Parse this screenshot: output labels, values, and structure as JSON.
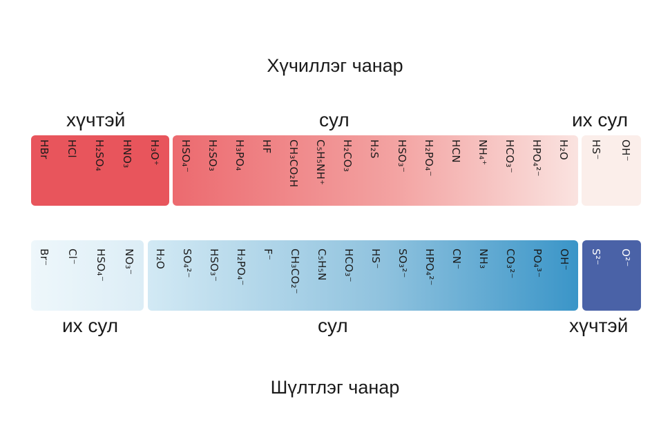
{
  "acidity_title": "Хүчиллэг чанар",
  "basicity_title": "Шүлтлэг чанар",
  "acid_labels": {
    "strong": "хүчтэй",
    "weak": "сул",
    "very_weak": "их сул"
  },
  "base_labels": {
    "very_weak": "их сул",
    "weak": "сул",
    "strong": "хүчтэй"
  },
  "colors": {
    "acid_strong": "#e8555c",
    "acid_weak_start": "#ec6a6f",
    "acid_weak_end": "#fae3e0",
    "acid_very_weak": "#fbeeea",
    "base_very_weak": "#e7f3f9",
    "base_weak_start": "#d2e9f4",
    "base_weak_end": "#3a95c8",
    "base_strong": "#4a62a7"
  },
  "acids": {
    "strong": [
      "HBr",
      "HCl",
      "H₂SO₄",
      "HNO₃",
      "H₃O⁺"
    ],
    "weak": [
      "HSO₄⁻",
      "H₂SO₃",
      "H₃PO₄",
      "HF",
      "CH₃CO₂H",
      "C₅H₅NH⁺",
      "H₂CO₃",
      "H₂S",
      "HSO₃⁻",
      "H₂PO₄⁻",
      "HCN",
      "NH₄⁺",
      "HCO₃⁻",
      "HPO₄²⁻",
      "H₂O"
    ],
    "very_weak": [
      "HS⁻",
      "OH⁻"
    ]
  },
  "bases": {
    "very_weak": [
      "Br⁻",
      "Cl⁻",
      "HSO₄⁻",
      "NO₃⁻"
    ],
    "weak": [
      "H₂O",
      "SO₄²⁻",
      "HSO₃⁻",
      "H₂PO₄⁻",
      "F⁻",
      "CH₃CO₂⁻",
      "C₅H₅N",
      "HCO₃⁻",
      "HS⁻",
      "SO₃²⁻",
      "HPO₄²⁻",
      "CN⁻",
      "NH₃",
      "CO₃²⁻",
      "PO₄³⁻",
      "OH⁻"
    ],
    "strong": [
      "S²⁻",
      "O²⁻"
    ]
  }
}
